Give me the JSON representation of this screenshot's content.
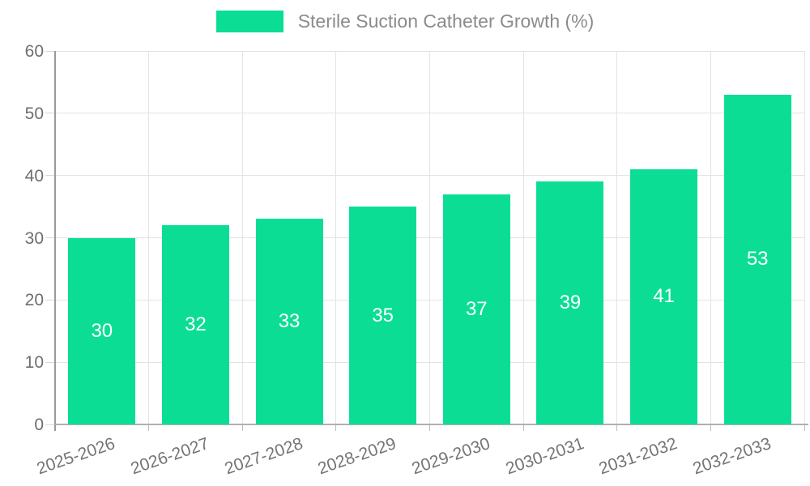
{
  "chart_data": {
    "type": "bar",
    "title": "Sterile Suction Catheter Growth (%)",
    "categories": [
      "2025-2026",
      "2026-2027",
      "2027-2028",
      "2028-2029",
      "2029-2030",
      "2030-2031",
      "2031-2032",
      "2032-2033"
    ],
    "values": [
      30,
      32,
      33,
      35,
      37,
      39,
      41,
      53
    ],
    "series": [
      {
        "name": "Sterile Suction Catheter Growth (%)",
        "values": [
          30,
          32,
          33,
          35,
          37,
          39,
          41,
          53
        ]
      }
    ],
    "xlabel": "",
    "ylabel": "",
    "ylim": [
      0,
      60
    ],
    "yticks": [
      0,
      10,
      20,
      30,
      40,
      50,
      60
    ],
    "grid": true,
    "legend_position": "top",
    "bar_color": "#0bde94",
    "bar_label_color": "#ffffff",
    "axis_text_color": "#6e6e6e",
    "x_text_color": "#757575",
    "legend_text_color": "#8b8b8b",
    "gridline_color": "#e3e3e3"
  }
}
